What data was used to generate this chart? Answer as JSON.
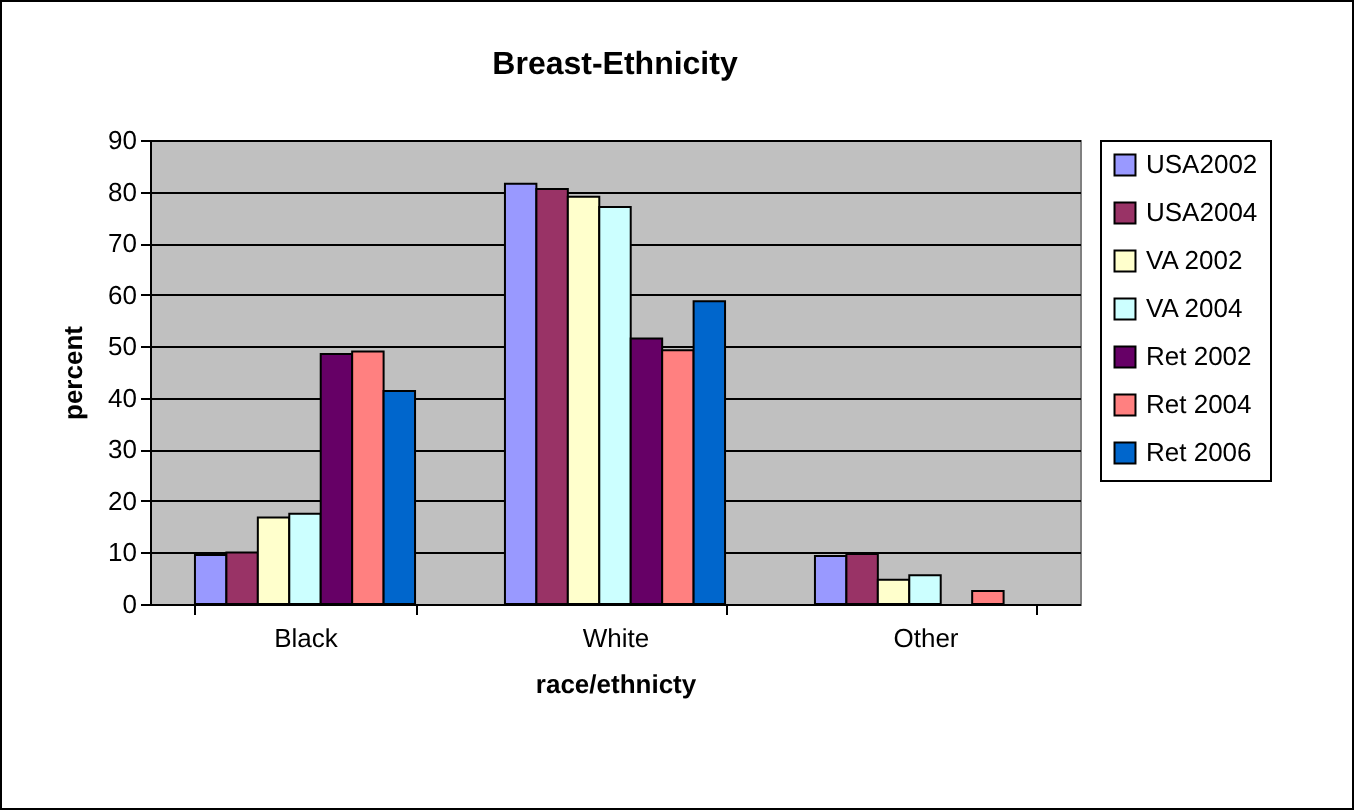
{
  "chart_data": {
    "type": "bar",
    "title": "Breast-Ethnicity",
    "xlabel": "race/ethnicty",
    "ylabel": "percent",
    "categories": [
      "Black",
      "White",
      "Other"
    ],
    "series": [
      {
        "name": "USA2002",
        "color": "#9999ff",
        "values": [
          9.5,
          81.5,
          9.3
        ]
      },
      {
        "name": "USA2004",
        "color": "#993366",
        "values": [
          10,
          80.5,
          9.7
        ]
      },
      {
        "name": "VA 2002",
        "color": "#ffffcc",
        "values": [
          16.8,
          79,
          4.7
        ]
      },
      {
        "name": "VA 2004",
        "color": "#ccffff",
        "values": [
          17.5,
          77,
          5.6
        ]
      },
      {
        "name": "Ret 2002",
        "color": "#660066",
        "values": [
          48.5,
          51.5,
          null
        ]
      },
      {
        "name": "Ret 2004",
        "color": "#ff8080",
        "values": [
          49,
          49.2,
          2.5
        ]
      },
      {
        "name": "Ret 2006",
        "color": "#0066cc",
        "values": [
          41.3,
          58.7,
          null
        ]
      }
    ],
    "ylim": [
      0,
      90
    ],
    "yticks": [
      0,
      10,
      20,
      30,
      40,
      50,
      60,
      70,
      80,
      90
    ],
    "grid": "y",
    "legend": "right"
  }
}
